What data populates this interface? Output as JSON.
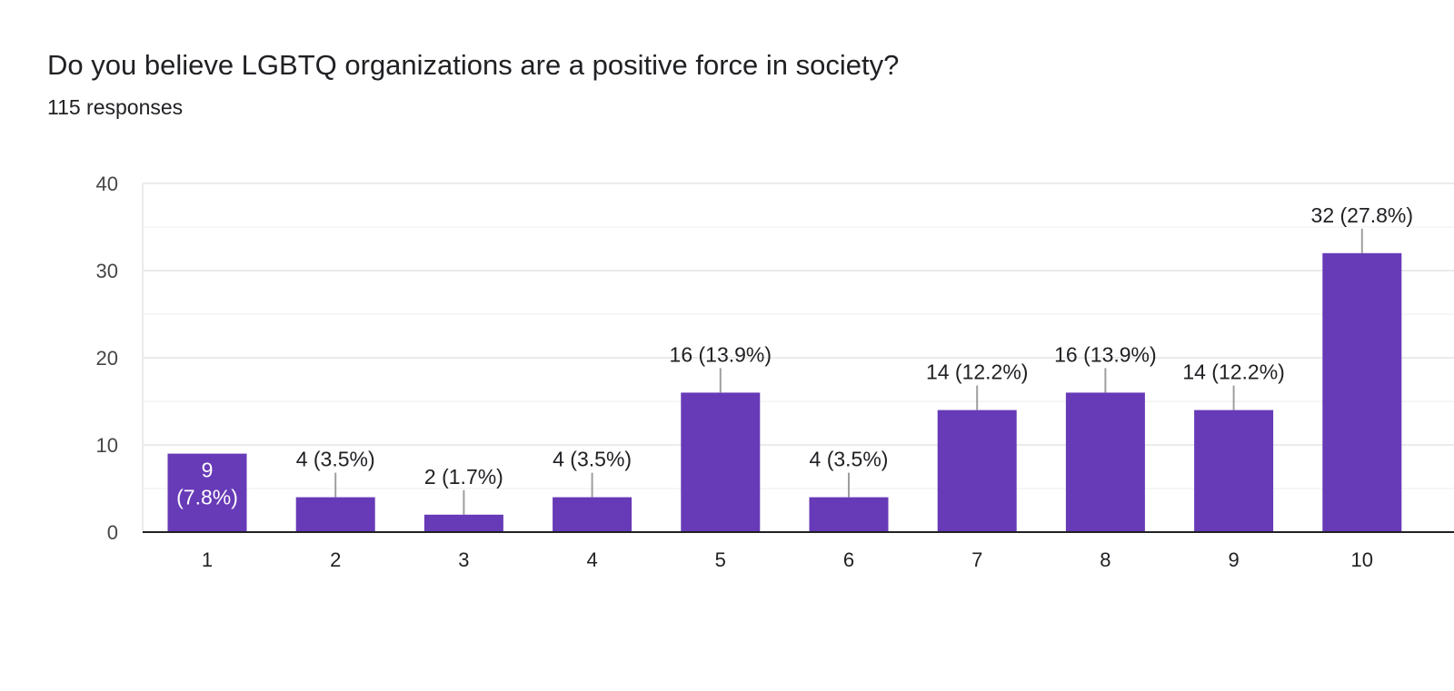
{
  "question": {
    "title": "Do you believe LGBTQ organizations are a positive force in society?",
    "responses": "115 responses"
  },
  "colors": {
    "bar": "#673ab7",
    "grid": "#ebebeb",
    "axis": "#202124",
    "leader": "#9e9e9e"
  },
  "chart_data": {
    "type": "bar",
    "title": "Do you believe LGBTQ organizations are a positive force in society?",
    "xlabel": "",
    "ylabel": "",
    "categories": [
      "1",
      "2",
      "3",
      "4",
      "5",
      "6",
      "7",
      "8",
      "9",
      "10"
    ],
    "values": [
      9,
      4,
      2,
      4,
      16,
      4,
      14,
      16,
      14,
      32
    ],
    "data_labels": [
      "9 (7.8%)",
      "4 (3.5%)",
      "2 (1.7%)",
      "4 (3.5%)",
      "16 (13.9%)",
      "4 (3.5%)",
      "14 (12.2%)",
      "16 (13.9%)",
      "14 (12.2%)",
      "32 (27.8%)"
    ],
    "ylim": [
      0,
      40
    ],
    "yticks": [
      "0",
      "10",
      "20",
      "30",
      "40"
    ],
    "grid": true,
    "legend": "none"
  }
}
